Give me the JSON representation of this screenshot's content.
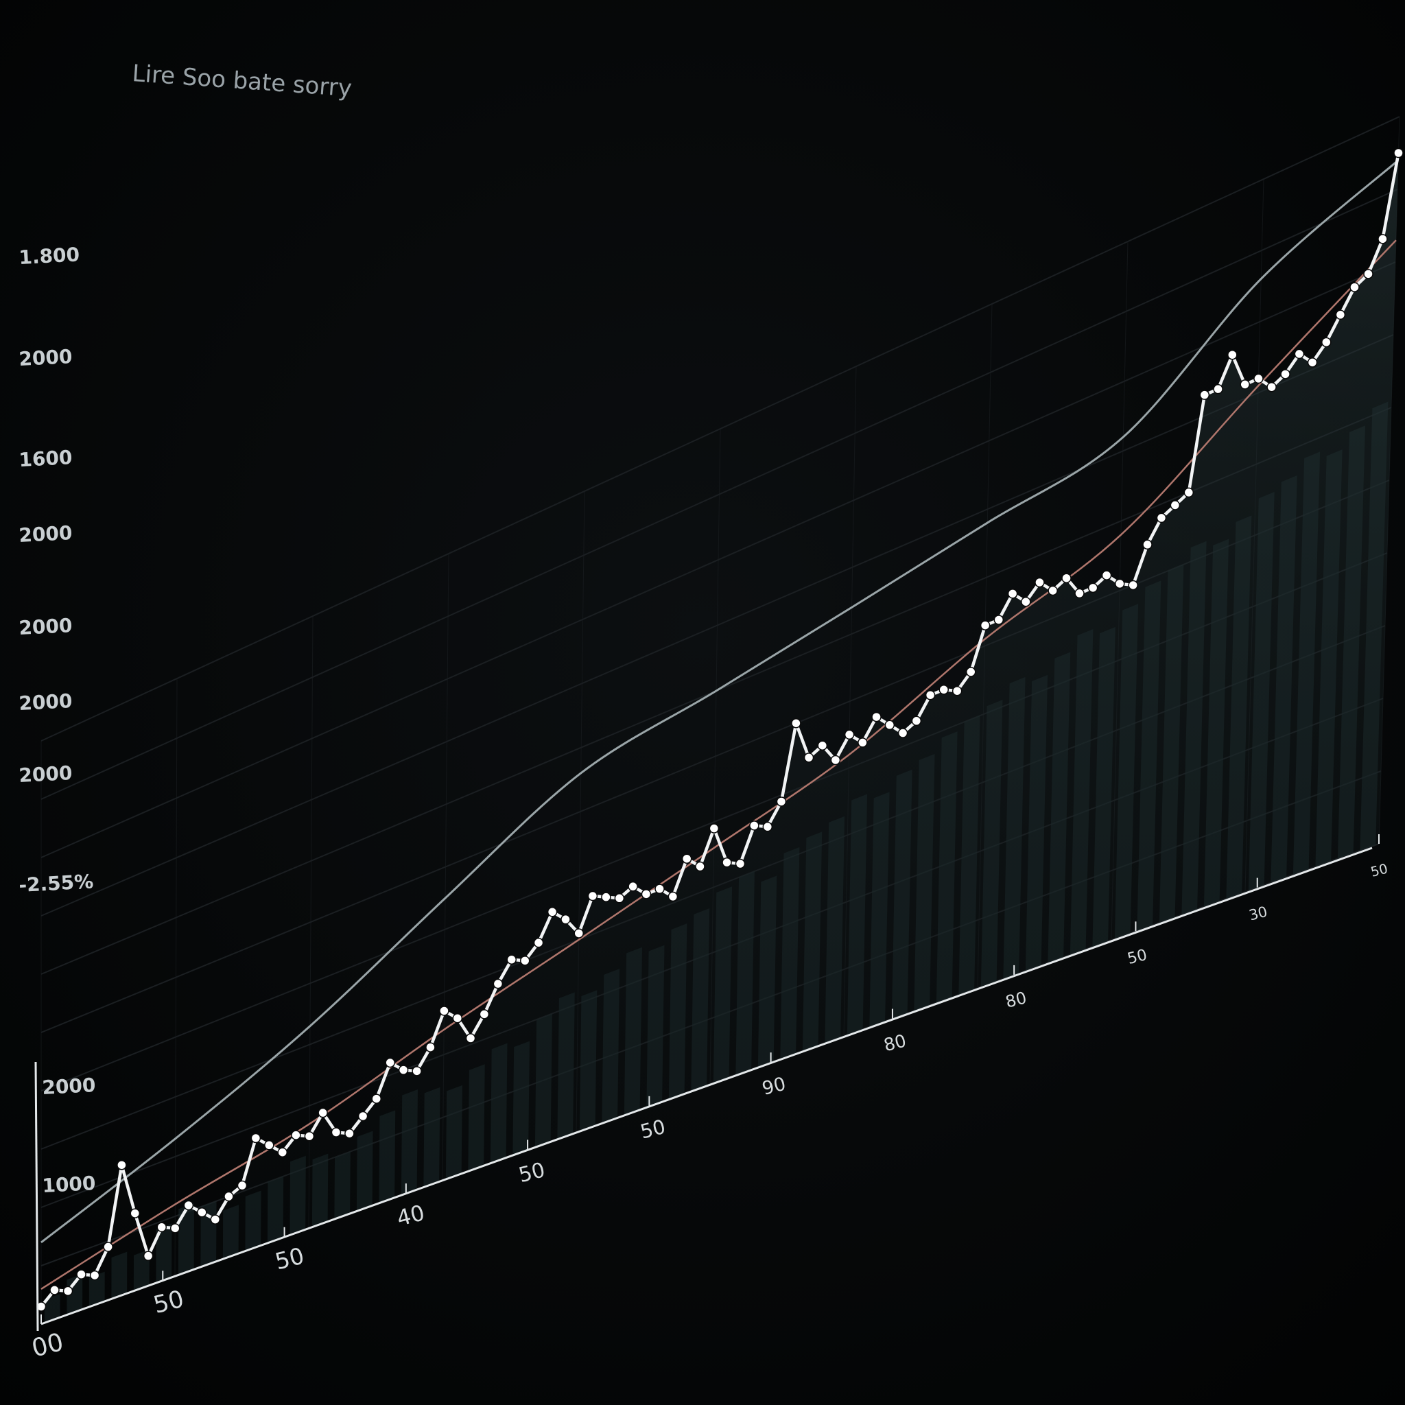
{
  "colors": {
    "background": "#040506",
    "main_line": "#f2f4f5",
    "upper_curve": "#9aa5a8",
    "trend_line": "#b0766c",
    "bars": "#1c2a2c",
    "grid": "#1b1f22",
    "axis": "#e4e8ea"
  },
  "chart_data": {
    "type": "line",
    "title": "Lire Soo bate sorry",
    "xlabel": "",
    "ylabel": "",
    "y_tick_labels": [
      "1.800",
      "2000",
      "1600",
      "2000",
      "2000",
      "2000",
      "2000",
      "-2.55%",
      "2000",
      "1000"
    ],
    "x_tick_labels": [
      "00",
      "50",
      "50",
      "40",
      "50",
      "50",
      "90",
      "80",
      "80",
      "50",
      "30",
      "50"
    ],
    "grid": true,
    "xlim": [
      0,
      100
    ],
    "ylim": [
      0,
      100
    ],
    "series": [
      {
        "role": "main",
        "style": "white line with markers",
        "x": [
          0,
          1,
          2,
          3,
          4,
          5,
          6,
          7,
          8,
          9,
          10,
          11,
          12,
          13,
          14,
          15,
          16,
          17,
          18,
          19,
          20,
          21,
          22,
          23,
          24,
          25,
          26,
          27,
          28,
          29,
          30,
          31,
          32,
          33,
          34,
          35,
          36,
          37,
          38,
          39,
          40,
          41,
          42,
          43,
          44,
          45,
          46,
          47,
          48,
          49,
          50,
          51,
          52,
          53,
          54,
          55,
          56,
          57,
          58,
          59,
          60,
          61,
          62,
          63,
          64,
          65,
          66,
          67,
          68,
          69,
          70,
          71,
          72,
          73,
          74,
          75,
          76,
          77,
          78,
          79,
          80,
          81,
          82,
          83,
          84,
          85,
          86,
          87,
          88,
          89,
          90,
          91,
          92,
          93,
          94,
          95,
          96,
          97,
          98,
          99,
          100
        ],
        "y": [
          3,
          5,
          4,
          6,
          5,
          9,
          22,
          13,
          5,
          9,
          8,
          11,
          9,
          7,
          10,
          11,
          18,
          16,
          14,
          16,
          15,
          18,
          14,
          13,
          15,
          17,
          22,
          20,
          19,
          22,
          27,
          25,
          21,
          24,
          28,
          31,
          30,
          32,
          36,
          34,
          31,
          36,
          35,
          34,
          35,
          33,
          33,
          31,
          36,
          34,
          39,
          33,
          32,
          37,
          36,
          39,
          50,
          44,
          45,
          42,
          45,
          43,
          46,
          44,
          42,
          43,
          46,
          46,
          45,
          47,
          53,
          53,
          56,
          54,
          56,
          54,
          55,
          52,
          52,
          53,
          51,
          50,
          55,
          58,
          59,
          60,
          73,
          73,
          77,
          72,
          72,
          70,
          71,
          73,
          71,
          73,
          76,
          79,
          80,
          84,
          95
        ]
      },
      {
        "role": "upper-curve",
        "style": "thin grey smooth line",
        "x": [
          0,
          10,
          20,
          30,
          40,
          50,
          60,
          70,
          80,
          90,
          100
        ],
        "y": [
          14,
          23,
          33,
          45,
          56,
          60,
          64,
          68,
          72,
          86,
          94
        ]
      },
      {
        "role": "trend",
        "style": "thin reddish trend line",
        "x": [
          0,
          10,
          20,
          30,
          40,
          50,
          60,
          70,
          80,
          90,
          100
        ],
        "y": [
          6,
          12,
          17,
          24,
          30,
          36,
          42,
          51,
          58,
          71,
          83
        ]
      }
    ],
    "bars": [
      4,
      6,
      5,
      7,
      6,
      9,
      11,
      10,
      8,
      9,
      10,
      12,
      11,
      10,
      12,
      14,
      16,
      15,
      14,
      16,
      18,
      17,
      20,
      22,
      21,
      23,
      25,
      24,
      26,
      27,
      29,
      30,
      28,
      31,
      32,
      33,
      35,
      34,
      36,
      37,
      39,
      40,
      41,
      43,
      42,
      44,
      46,
      45,
      47,
      49,
      50,
      52,
      51,
      53,
      55,
      56,
      58,
      57,
      59,
      61
    ]
  }
}
